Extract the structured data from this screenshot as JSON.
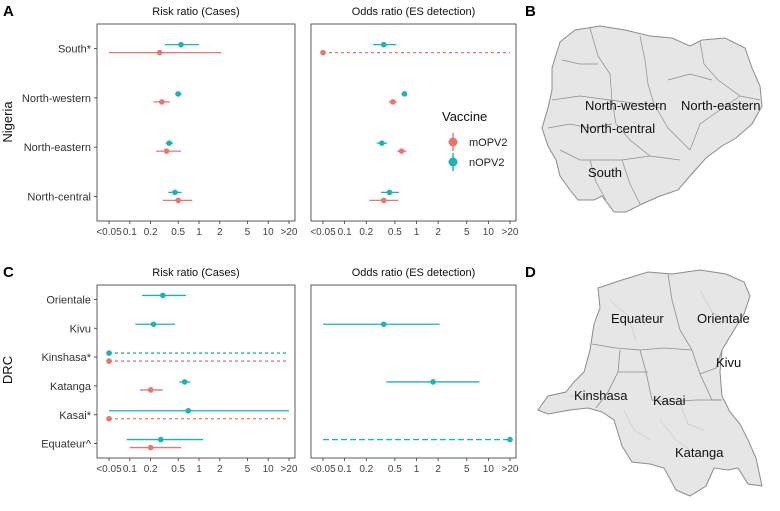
{
  "panel_letters": {
    "A": "A",
    "B": "B",
    "C": "C",
    "D": "D"
  },
  "colors": {
    "mOPV2": "#e8756f",
    "nOPV2": "#19b3b8",
    "map_fill": "#e6e6e6",
    "map_stroke": "#8c8c8c"
  },
  "legend": {
    "title": "Vaccine",
    "items": [
      {
        "label": "mOPV2",
        "color": "#e8756f"
      },
      {
        "label": "nOPV2",
        "color": "#19b3b8"
      }
    ]
  },
  "maps": {
    "nigeria": {
      "labels": [
        "North-western",
        "North-eastern",
        "North-central",
        "South"
      ]
    },
    "drc": {
      "labels": [
        "Equateur",
        "Orientale",
        "Kivu",
        "Kinshasa",
        "Kasai",
        "Katanga"
      ]
    }
  },
  "chart_data": [
    {
      "type": "forest",
      "title": "Risk ratio (Cases)",
      "row_group": "Nigeria",
      "xscale": "log",
      "xlim": [
        0.05,
        20
      ],
      "xtick_labels": [
        "<0.05",
        "0.1",
        "0.2",
        "0.5",
        "1",
        "2",
        "5",
        "10",
        ">20"
      ],
      "categories": [
        "South*",
        "North-western",
        "North-eastern",
        "North-central"
      ],
      "series": [
        {
          "name": "nOPV2",
          "points": [
            {
              "category": "South*",
              "estimate": 0.55,
              "lower": 0.32,
              "upper": 1.0
            },
            {
              "category": "North-western",
              "estimate": 0.5,
              "lower": 0.45,
              "upper": 0.56
            },
            {
              "category": "North-eastern",
              "estimate": 0.37,
              "lower": 0.33,
              "upper": 0.42
            },
            {
              "category": "North-central",
              "estimate": 0.45,
              "lower": 0.36,
              "upper": 0.56
            }
          ]
        },
        {
          "name": "mOPV2",
          "points": [
            {
              "category": "South*",
              "estimate": 0.27,
              "lower": 0.05,
              "upper": 2.1
            },
            {
              "category": "North-western",
              "estimate": 0.29,
              "lower": 0.22,
              "upper": 0.38
            },
            {
              "category": "North-eastern",
              "estimate": 0.34,
              "lower": 0.24,
              "upper": 0.55
            },
            {
              "category": "North-central",
              "estimate": 0.5,
              "lower": 0.3,
              "upper": 0.8
            }
          ]
        }
      ]
    },
    {
      "type": "forest",
      "title": "Odds ratio (ES detection)",
      "row_group": "Nigeria",
      "xscale": "log",
      "xlim": [
        0.05,
        20
      ],
      "xtick_labels": [
        "<0.05",
        "0.1",
        "0.2",
        "0.5",
        "1",
        "2",
        "5",
        "10",
        ">20"
      ],
      "categories": [
        "South*",
        "North-western",
        "North-eastern",
        "North-central"
      ],
      "series": [
        {
          "name": "nOPV2",
          "points": [
            {
              "category": "South*",
              "estimate": 0.35,
              "lower": 0.25,
              "upper": 0.52
            },
            {
              "category": "North-western",
              "estimate": 0.68,
              "lower": 0.62,
              "upper": 0.74
            },
            {
              "category": "North-eastern",
              "estimate": 0.33,
              "lower": 0.28,
              "upper": 0.39
            },
            {
              "category": "North-central",
              "estimate": 0.42,
              "lower": 0.32,
              "upper": 0.57
            }
          ]
        },
        {
          "name": "mOPV2",
          "points": [
            {
              "category": "South*",
              "estimate": 0.05,
              "lower": 0.05,
              "upper": 20,
              "truncated": true
            },
            {
              "category": "North-western",
              "estimate": 0.47,
              "lower": 0.41,
              "upper": 0.53
            },
            {
              "category": "North-eastern",
              "estimate": 0.62,
              "lower": 0.54,
              "upper": 0.72
            },
            {
              "category": "North-central",
              "estimate": 0.35,
              "lower": 0.22,
              "upper": 0.56
            }
          ]
        }
      ]
    },
    {
      "type": "forest",
      "title": "Risk ratio (Cases)",
      "row_group": "DRC",
      "xscale": "log",
      "xlim": [
        0.05,
        20
      ],
      "xtick_labels": [
        "<0.05",
        "0.1",
        "0.2",
        "0.5",
        "1",
        "2",
        "5",
        "10",
        ">20"
      ],
      "categories": [
        "Orientale",
        "Kivu",
        "Kinshasa*",
        "Katanga",
        "Kasai*",
        "Equateur^"
      ],
      "series": [
        {
          "name": "nOPV2",
          "points": [
            {
              "category": "Orientale",
              "estimate": 0.3,
              "lower": 0.15,
              "upper": 0.65
            },
            {
              "category": "Kivu",
              "estimate": 0.22,
              "lower": 0.12,
              "upper": 0.45
            },
            {
              "category": "Kinshasa*",
              "estimate": 0.05,
              "lower": 0.05,
              "upper": 20,
              "truncated": true
            },
            {
              "category": "Katanga",
              "estimate": 0.62,
              "lower": 0.52,
              "upper": 0.75
            },
            {
              "category": "Kasai*",
              "estimate": 0.7,
              "lower": 0.05,
              "upper": 20
            },
            {
              "category": "Equateur^",
              "estimate": 0.28,
              "lower": 0.09,
              "upper": 1.15
            }
          ]
        },
        {
          "name": "mOPV2",
          "points": [
            {
              "category": "Kinshasa*",
              "estimate": 0.05,
              "lower": 0.05,
              "upper": 20,
              "truncated": true
            },
            {
              "category": "Katanga",
              "estimate": 0.2,
              "lower": 0.14,
              "upper": 0.3
            },
            {
              "category": "Kasai*",
              "estimate": 0.05,
              "lower": 0.05,
              "upper": 20,
              "truncated": true
            },
            {
              "category": "Equateur^",
              "estimate": 0.2,
              "lower": 0.1,
              "upper": 0.55
            }
          ]
        }
      ]
    },
    {
      "type": "forest",
      "title": "Odds ratio (ES detection)",
      "row_group": "DRC",
      "xscale": "log",
      "xlim": [
        0.05,
        20
      ],
      "xtick_labels": [
        "<0.05",
        "0.1",
        "0.2",
        "0.5",
        "1",
        "2",
        "5",
        "10",
        ">20"
      ],
      "categories": [
        "Orientale",
        "Kivu",
        "Kinshasa*",
        "Katanga",
        "Kasai*",
        "Equateur^"
      ],
      "series": [
        {
          "name": "nOPV2",
          "points": [
            {
              "category": "Kivu",
              "estimate": 0.35,
              "lower": 0.05,
              "upper": 2.1
            },
            {
              "category": "Katanga",
              "estimate": 1.7,
              "lower": 0.38,
              "upper": 7.5
            },
            {
              "category": "Equateur^",
              "estimate": 20,
              "lower": 0.05,
              "upper": 20,
              "truncated": true
            }
          ]
        }
      ]
    }
  ]
}
